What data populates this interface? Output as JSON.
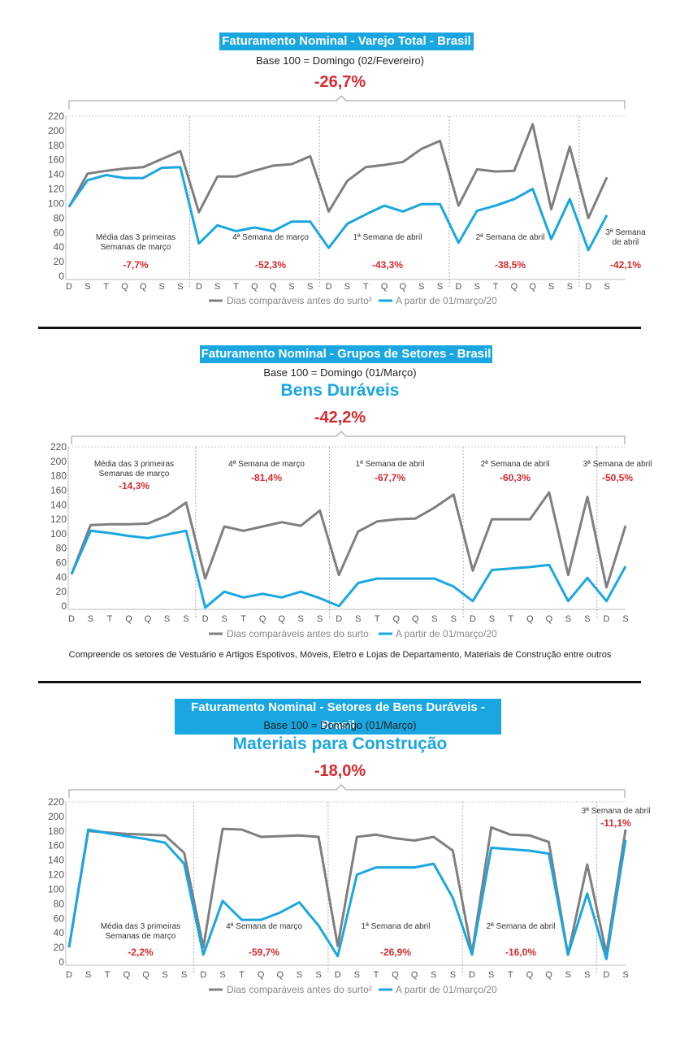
{
  "colors": {
    "gray": "#7f7f7f",
    "blue": "#1aa7e1",
    "red": "#d62a2f",
    "grid": "#d9d9d9"
  },
  "charts": [
    {
      "title": "Faturamento Nominal - Varejo Total - Brasil",
      "base": "Base 100 = Domingo (02/Fevereiro)",
      "subtitle": "",
      "headline": "-26,7%",
      "note": "",
      "legend": {
        "gray": "Dias comparáveis antes do surto²",
        "blue": "A partir de 01/março/20"
      },
      "weeks": [
        {
          "label": "Média das 3 primeiras Semanas de março",
          "value": "-7,7%"
        },
        {
          "label": "4ª Semana de março",
          "value": "-52,3%"
        },
        {
          "label": "1ª Semana de abril",
          "value": "-43,3%"
        },
        {
          "label": "2ª Semana de abril",
          "value": "-38,5%"
        },
        {
          "label": "3ª Semana de abril",
          "value": "-42,1%"
        }
      ]
    },
    {
      "title": "Faturamento Nominal - Grupos de Setores - Brasil",
      "base": "Base 100 = Domingo (01/Março)",
      "subtitle": "Bens Duráveis",
      "headline": "-42,2%",
      "note": "Compreende os setores de Vestuário e Artigos Espotivos, Móveis, Eletro e Lojas de Departamento, Materiais de Construção entre outros",
      "legend": {
        "gray": "Dias comparáveis antes do surto",
        "blue": "A partir de 01/março/20"
      },
      "weeks": [
        {
          "label": "Média das 3 primeiras Semanas de março",
          "value": "-14,3%"
        },
        {
          "label": "4ª Semana de março",
          "value": "-81,4%"
        },
        {
          "label": "1ª Semana de abril",
          "value": "-67,7%"
        },
        {
          "label": "2ª Semana de abril",
          "value": "-60,3%"
        },
        {
          "label": "3ª Semana de abril",
          "value": "-50,5%"
        }
      ]
    },
    {
      "title": "Faturamento Nominal - Setores de Bens Duráveis - Brasil",
      "base": "Base 100 = Domingo (01/Março)",
      "subtitle": "Materiais para Construção",
      "headline": "-18,0%",
      "note": "",
      "legend": {
        "gray": "Dias comparáveis antes do surto²",
        "blue": "A partir de 01/março/20"
      },
      "weeks": [
        {
          "label": "Média das 3 primeiras Semanas de março",
          "value": "-2,2%"
        },
        {
          "label": "4ª Semana de março",
          "value": "-59,7%"
        },
        {
          "label": "1ª Semana de abril",
          "value": "-26,9%"
        },
        {
          "label": "2ª Semana de abril",
          "value": "-16,0%"
        },
        {
          "label": "3ª Semana de abril",
          "value": "-11,1%"
        }
      ]
    }
  ],
  "chart_data": [
    {
      "type": "line",
      "title": "Faturamento Nominal - Varejo Total - Brasil",
      "x": [
        "D",
        "S",
        "T",
        "Q",
        "Q",
        "S",
        "S",
        "D",
        "S",
        "T",
        "Q",
        "Q",
        "S",
        "S",
        "D",
        "S",
        "T",
        "Q",
        "Q",
        "S",
        "S",
        "D",
        "S",
        "T",
        "Q",
        "Q",
        "S",
        "S",
        "D",
        "S"
      ],
      "ylim": [
        0,
        220
      ],
      "yticks": [
        0,
        20,
        40,
        60,
        80,
        100,
        120,
        140,
        160,
        180,
        200,
        220
      ],
      "grid": false,
      "series": [
        {
          "name": "Dias comparáveis antes do surto²",
          "color": "#7f7f7f",
          "values": [
            95,
            141,
            145,
            148,
            150,
            161,
            172,
            88,
            137,
            137,
            145,
            152,
            154,
            165,
            89,
            131,
            150,
            153,
            157,
            175,
            186,
            97,
            147,
            144,
            145,
            209,
            92,
            178,
            80,
            136
          ]
        },
        {
          "name": "A partir de 01/março/20",
          "color": "#1aa7e1",
          "values": [
            96,
            132,
            139,
            135,
            135,
            149,
            150,
            45,
            70,
            62,
            67,
            62,
            75,
            75,
            39,
            72,
            85,
            97,
            89,
            99,
            99,
            46,
            90,
            97,
            106,
            120,
            51,
            106,
            36,
            84
          ]
        }
      ]
    },
    {
      "type": "line",
      "title": "Faturamento Nominal - Grupos de Setores - Brasil",
      "x": [
        "D",
        "S",
        "T",
        "Q",
        "Q",
        "S",
        "S",
        "D",
        "S",
        "T",
        "Q",
        "Q",
        "S",
        "S",
        "D",
        "S",
        "T",
        "Q",
        "Q",
        "S",
        "S",
        "D",
        "S",
        "T",
        "Q",
        "Q",
        "S",
        "S",
        "D",
        "S"
      ],
      "ylim": [
        0,
        220
      ],
      "yticks": [
        0,
        20,
        40,
        60,
        80,
        100,
        120,
        140,
        160,
        180,
        200,
        220
      ],
      "grid": false,
      "series": [
        {
          "name": "Dias comparáveis antes do surto",
          "color": "#7f7f7f",
          "values": [
            44,
            112,
            113,
            113,
            114,
            125,
            143,
            38,
            110,
            104,
            110,
            116,
            111,
            132,
            43,
            103,
            117,
            120,
            121,
            136,
            154,
            49,
            120,
            120,
            120,
            157,
            43,
            151,
            26,
            111
          ]
        },
        {
          "name": "A partir de 01/março/20",
          "color": "#1aa7e1",
          "values": [
            44,
            104,
            101,
            97,
            94,
            99,
            104,
            -2,
            20,
            12,
            17,
            12,
            20,
            11,
            0,
            32,
            38,
            38,
            38,
            38,
            27,
            7,
            50,
            52,
            54,
            57,
            7,
            39,
            7,
            55
          ]
        }
      ]
    },
    {
      "type": "line",
      "title": "Faturamento Nominal - Setores de Bens Duráveis - Brasil",
      "x": [
        "D",
        "S",
        "T",
        "Q",
        "Q",
        "S",
        "S",
        "D",
        "S",
        "T",
        "Q",
        "Q",
        "S",
        "S",
        "D",
        "S",
        "T",
        "Q",
        "Q",
        "S",
        "S",
        "D",
        "S",
        "T",
        "Q",
        "Q",
        "S",
        "S",
        "D",
        "S"
      ],
      "ylim": [
        0,
        220
      ],
      "yticks": [
        0,
        20,
        40,
        60,
        80,
        100,
        120,
        140,
        160,
        180,
        200,
        220
      ],
      "grid": false,
      "series": [
        {
          "name": "Dias comparáveis antes do surto²",
          "color": "#7f7f7f",
          "values": [
            20,
            180,
            178,
            176,
            175,
            174,
            150,
            20,
            183,
            182,
            172,
            173,
            174,
            172,
            22,
            172,
            175,
            170,
            167,
            172,
            153,
            12,
            185,
            175,
            174,
            165,
            10,
            134,
            12,
            182
          ]
        },
        {
          "name": "A partir de 01/março/20",
          "color": "#1aa7e1",
          "values": [
            20,
            182,
            177,
            173,
            169,
            164,
            135,
            10,
            84,
            58,
            58,
            68,
            82,
            50,
            8,
            120,
            130,
            130,
            130,
            135,
            88,
            10,
            157,
            155,
            153,
            149,
            10,
            94,
            4,
            168
          ]
        }
      ]
    }
  ]
}
